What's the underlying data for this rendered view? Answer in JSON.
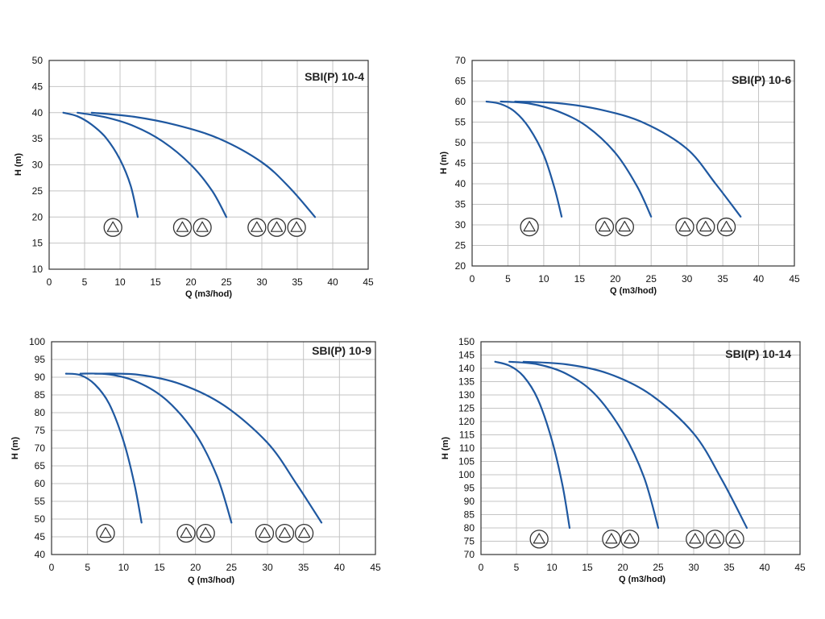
{
  "colors": {
    "curve": "#1f58a0",
    "grid": "#c4c4c4",
    "frame": "#333333",
    "background": "#ffffff"
  },
  "icons": {
    "pump": "pump-symbol-icon"
  },
  "chart_data": [
    {
      "type": "line",
      "title": "SBI(P) 10-4",
      "xlabel": "Q (m3/hod)",
      "ylabel": "H (m)",
      "xlim": [
        0,
        45
      ],
      "ylim": [
        10,
        50
      ],
      "xticks": [
        0,
        5,
        10,
        15,
        20,
        25,
        30,
        35,
        40,
        45
      ],
      "yticks": [
        10,
        15,
        20,
        25,
        30,
        35,
        40,
        45,
        50
      ],
      "grid": true,
      "series": [
        {
          "x": [
            2,
            4,
            6,
            8,
            10,
            11.5,
            12.5
          ],
          "y": [
            40,
            39.3,
            37.7,
            35.2,
            31,
            26,
            20
          ]
        },
        {
          "x": [
            4,
            8,
            12,
            16,
            20,
            23,
            25
          ],
          "y": [
            40,
            39.1,
            37.4,
            34.5,
            30,
            25,
            20
          ]
        },
        {
          "x": [
            6,
            12,
            18,
            24,
            30,
            34,
            37.5
          ],
          "y": [
            40,
            39.2,
            37.6,
            35,
            30.5,
            25.5,
            20
          ]
        }
      ],
      "pump_symbols": [
        {
          "x": 9,
          "y": 18,
          "count": 1
        },
        {
          "x": 18.8,
          "y": 18,
          "count": 1
        },
        {
          "x": 21.6,
          "y": 18,
          "count": 1
        },
        {
          "x": 29.3,
          "y": 18,
          "count": 1
        },
        {
          "x": 32.1,
          "y": 18,
          "count": 1
        },
        {
          "x": 34.9,
          "y": 18,
          "count": 1
        }
      ]
    },
    {
      "type": "line",
      "title": "SBI(P) 10-6",
      "xlabel": "Q (m3/hod)",
      "ylabel": "H (m)",
      "xlim": [
        0,
        45
      ],
      "ylim": [
        20,
        70
      ],
      "xticks": [
        0,
        5,
        10,
        15,
        20,
        25,
        30,
        35,
        40,
        45
      ],
      "yticks": [
        20,
        25,
        30,
        35,
        40,
        45,
        50,
        55,
        60,
        65,
        70
      ],
      "grid": true,
      "series": [
        {
          "x": [
            2,
            4,
            6,
            8,
            10,
            11.5,
            12.5
          ],
          "y": [
            60,
            59.4,
            57.5,
            53.5,
            47,
            39,
            32
          ]
        },
        {
          "x": [
            4,
            8,
            12,
            16,
            20,
            23,
            25
          ],
          "y": [
            60,
            59.5,
            57.6,
            54,
            47.5,
            39.5,
            32
          ]
        },
        {
          "x": [
            6,
            12,
            18,
            24,
            30,
            34,
            37.5
          ],
          "y": [
            60,
            59.6,
            58,
            54.8,
            48.5,
            40,
            32
          ]
        }
      ],
      "pump_symbols": [
        {
          "x": 8,
          "y": 29.5,
          "count": 1
        },
        {
          "x": 18.5,
          "y": 29.5,
          "count": 1
        },
        {
          "x": 21.3,
          "y": 29.5,
          "count": 1
        },
        {
          "x": 29.7,
          "y": 29.5,
          "count": 1
        },
        {
          "x": 32.6,
          "y": 29.5,
          "count": 1
        },
        {
          "x": 35.5,
          "y": 29.5,
          "count": 1
        }
      ]
    },
    {
      "type": "line",
      "title": "SBI(P) 10-9",
      "xlabel": "Q (m3/hod)",
      "ylabel": "H (m)",
      "xlim": [
        0,
        45
      ],
      "ylim": [
        40,
        100
      ],
      "xticks": [
        0,
        5,
        10,
        15,
        20,
        25,
        30,
        35,
        40,
        45
      ],
      "yticks": [
        40,
        45,
        50,
        55,
        60,
        65,
        70,
        75,
        80,
        85,
        90,
        95,
        100
      ],
      "grid": true,
      "series": [
        {
          "x": [
            2,
            4,
            6,
            8,
            10,
            11.5,
            12.5
          ],
          "y": [
            91,
            90.6,
            88,
            82.5,
            72,
            60,
            49
          ]
        },
        {
          "x": [
            4,
            8,
            12,
            16,
            20,
            23,
            25
          ],
          "y": [
            91,
            90.8,
            88.6,
            83.5,
            74,
            62,
            49
          ]
        },
        {
          "x": [
            6,
            12,
            18,
            24,
            30,
            34,
            37.5
          ],
          "y": [
            91,
            90.7,
            88,
            82,
            71.5,
            60,
            49
          ]
        }
      ],
      "pump_symbols": [
        {
          "x": 7.5,
          "y": 46,
          "count": 1
        },
        {
          "x": 18.7,
          "y": 46,
          "count": 1
        },
        {
          "x": 21.4,
          "y": 46,
          "count": 1
        },
        {
          "x": 29.6,
          "y": 46,
          "count": 1
        },
        {
          "x": 32.4,
          "y": 46,
          "count": 1
        },
        {
          "x": 35.1,
          "y": 46,
          "count": 1
        }
      ]
    },
    {
      "type": "line",
      "title": "SBI(P) 10-14",
      "xlabel": "Q (m3/hod)",
      "ylabel": "H (m)",
      "xlim": [
        0,
        45
      ],
      "ylim": [
        70,
        150
      ],
      "xticks": [
        0,
        5,
        10,
        15,
        20,
        25,
        30,
        35,
        40,
        45
      ],
      "yticks": [
        70,
        75,
        80,
        85,
        90,
        95,
        100,
        105,
        110,
        115,
        120,
        125,
        130,
        135,
        140,
        145,
        150
      ],
      "grid": true,
      "series": [
        {
          "x": [
            2,
            4,
            6,
            8,
            10,
            11.5,
            12.5
          ],
          "y": [
            142.5,
            141,
            137,
            128.5,
            113,
            96,
            80
          ]
        },
        {
          "x": [
            4,
            8,
            12,
            16,
            20,
            23,
            25
          ],
          "y": [
            142.5,
            141.5,
            138,
            130.5,
            116,
            99,
            80
          ]
        },
        {
          "x": [
            6,
            12,
            18,
            24,
            30,
            34,
            37.5
          ],
          "y": [
            142.5,
            141.5,
            138,
            130,
            115.5,
            98,
            80
          ]
        }
      ],
      "pump_symbols": [
        {
          "x": 8.2,
          "y": 75.8,
          "count": 1
        },
        {
          "x": 18.4,
          "y": 75.8,
          "count": 1
        },
        {
          "x": 21,
          "y": 75.8,
          "count": 1
        },
        {
          "x": 30.2,
          "y": 75.8,
          "count": 1
        },
        {
          "x": 33,
          "y": 75.8,
          "count": 1
        },
        {
          "x": 35.8,
          "y": 75.8,
          "count": 1
        }
      ]
    }
  ]
}
